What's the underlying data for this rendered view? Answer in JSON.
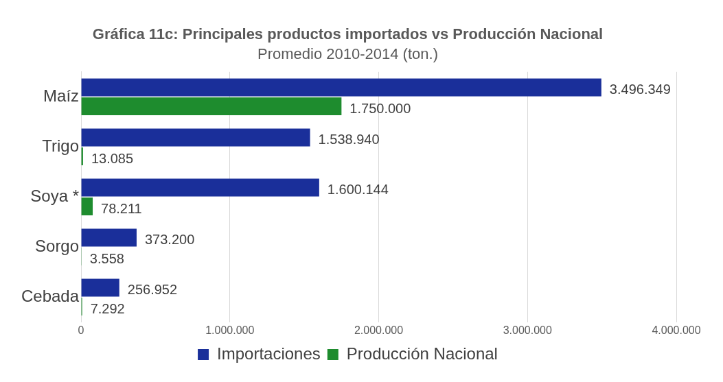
{
  "chart_data": {
    "type": "bar",
    "orientation": "horizontal",
    "title": "Gráfica 11c: Principales productos importados vs Producción Nacional",
    "subtitle": "Promedio 2010-2014 (ton.)",
    "categories": [
      "Maíz",
      "Trigo",
      "Soya *",
      "Sorgo",
      "Cebada"
    ],
    "series": [
      {
        "name": "Importaciones",
        "color": "#1a2f9a",
        "values": [
          3496349,
          1538940,
          1600144,
          373200,
          256952
        ],
        "value_labels": [
          "3.496.349",
          "1.538.940",
          "1.600.144",
          "373.200",
          "256.952"
        ]
      },
      {
        "name": "Producción Nacional",
        "color": "#1e8c2e",
        "values": [
          1750000,
          13085,
          78211,
          3558,
          7292
        ],
        "value_labels": [
          "1.750.000",
          "13.085",
          "78.211",
          "3.558",
          "7.292"
        ]
      }
    ],
    "xlim": [
      0,
      4000000
    ],
    "xticks": [
      0,
      {
        "value": 1000000,
        "label": "1.000.000"
      },
      {
        "value": 2000000,
        "label": "2.000.000"
      },
      {
        "value": 3000000,
        "label": "3.000.000"
      },
      {
        "value": 4000000,
        "label": "4.000.000"
      }
    ],
    "grid": "x",
    "legend": "bottom"
  }
}
